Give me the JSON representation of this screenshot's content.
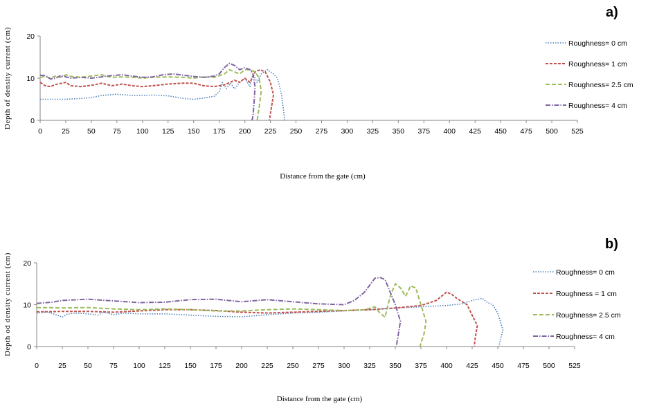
{
  "chart_data": [
    {
      "type": "line",
      "panel_label": "a)",
      "xlabel": "Distance from the gate (cm)",
      "ylabel": "Depth of density current (cm)",
      "xlim": [
        0,
        525
      ],
      "ylim": [
        0,
        20
      ],
      "xticks": [
        "0",
        "25",
        "50",
        "75",
        "100",
        "125",
        "150",
        "175",
        "200",
        "225",
        "250",
        "275",
        "300",
        "325",
        "350",
        "375",
        "400",
        "425",
        "450",
        "475",
        "500",
        "525"
      ],
      "yticks": [
        "0",
        "10",
        "20"
      ],
      "legend_position": "right",
      "series": [
        {
          "name": "Roughness= 0 cm",
          "color": "#4f81bd",
          "dash": "1.5,2",
          "width": 1.6,
          "points": [
            [
              0,
              5
            ],
            [
              10,
              5
            ],
            [
              25,
              5
            ],
            [
              40,
              5.2
            ],
            [
              50,
              5.4
            ],
            [
              60,
              5.9
            ],
            [
              75,
              6.2
            ],
            [
              90,
              5.9
            ],
            [
              100,
              5.9
            ],
            [
              110,
              6
            ],
            [
              125,
              5.8
            ],
            [
              140,
              5.2
            ],
            [
              150,
              5
            ],
            [
              160,
              5.3
            ],
            [
              170,
              5.7
            ],
            [
              175,
              6.8
            ],
            [
              178,
              9
            ],
            [
              182,
              7.5
            ],
            [
              186,
              8.8
            ],
            [
              190,
              7.5
            ],
            [
              195,
              9
            ],
            [
              200,
              10
            ],
            [
              205,
              8
            ],
            [
              208,
              11
            ],
            [
              212,
              9
            ],
            [
              216,
              11
            ],
            [
              222,
              12
            ],
            [
              228,
              11
            ],
            [
              232,
              10
            ],
            [
              236,
              6
            ],
            [
              238,
              2
            ],
            [
              239,
              0
            ]
          ]
        },
        {
          "name": "Roughness= 1 cm",
          "color": "#c0504d",
          "dash": "4,2",
          "width": 2,
          "points": [
            [
              0,
              9
            ],
            [
              5,
              8.2
            ],
            [
              10,
              8
            ],
            [
              15,
              8.5
            ],
            [
              25,
              9
            ],
            [
              30,
              8.2
            ],
            [
              40,
              8
            ],
            [
              50,
              8.3
            ],
            [
              60,
              8.8
            ],
            [
              70,
              8.2
            ],
            [
              80,
              8.6
            ],
            [
              90,
              8.2
            ],
            [
              100,
              8
            ],
            [
              110,
              8.2
            ],
            [
              125,
              8.6
            ],
            [
              140,
              8.8
            ],
            [
              150,
              8.8
            ],
            [
              160,
              8.2
            ],
            [
              170,
              8
            ],
            [
              180,
              8.4
            ],
            [
              190,
              9.5
            ],
            [
              195,
              9
            ],
            [
              200,
              10
            ],
            [
              205,
              9
            ],
            [
              210,
              11.5
            ],
            [
              215,
              12
            ],
            [
              220,
              11.5
            ],
            [
              225,
              9
            ],
            [
              228,
              6
            ],
            [
              226,
              3
            ],
            [
              224,
              0
            ]
          ]
        },
        {
          "name": "Roughness= 2.5 cm",
          "color": "#9bbb59",
          "dash": "6,3",
          "width": 2,
          "points": [
            [
              0,
              10.2
            ],
            [
              5,
              10.4
            ],
            [
              10,
              10
            ],
            [
              15,
              10.5
            ],
            [
              20,
              10.2
            ],
            [
              25,
              10.8
            ],
            [
              30,
              10.4
            ],
            [
              40,
              10.2
            ],
            [
              50,
              10.5
            ],
            [
              60,
              10.8
            ],
            [
              70,
              10.2
            ],
            [
              80,
              10.3
            ],
            [
              90,
              10.2
            ],
            [
              100,
              10
            ],
            [
              110,
              10.2
            ],
            [
              125,
              10.3
            ],
            [
              140,
              10.2
            ],
            [
              150,
              10
            ],
            [
              160,
              10.3
            ],
            [
              170,
              10.2
            ],
            [
              180,
              11
            ],
            [
              185,
              12
            ],
            [
              190,
              11.5
            ],
            [
              195,
              11
            ],
            [
              200,
              12
            ],
            [
              205,
              12
            ],
            [
              210,
              11.5
            ],
            [
              214,
              10
            ],
            [
              216,
              7
            ],
            [
              214,
              3
            ],
            [
              212,
              0
            ]
          ]
        },
        {
          "name": "Roughness= 4 cm",
          "color": "#8064a2",
          "dash": "7,2,1.5,2",
          "width": 2,
          "points": [
            [
              0,
              10.7
            ],
            [
              5,
              10.6
            ],
            [
              10,
              9.8
            ],
            [
              15,
              10
            ],
            [
              20,
              10.6
            ],
            [
              30,
              10
            ],
            [
              40,
              10.2
            ],
            [
              50,
              10
            ],
            [
              60,
              10.3
            ],
            [
              70,
              10.6
            ],
            [
              80,
              10.8
            ],
            [
              90,
              10.5
            ],
            [
              100,
              10.2
            ],
            [
              110,
              10.3
            ],
            [
              120,
              10.8
            ],
            [
              130,
              11
            ],
            [
              140,
              10.7
            ],
            [
              150,
              10.4
            ],
            [
              160,
              10.2
            ],
            [
              170,
              10.5
            ],
            [
              175,
              11
            ],
            [
              180,
              12.5
            ],
            [
              185,
              13.5
            ],
            [
              190,
              13
            ],
            [
              195,
              12
            ],
            [
              200,
              12.5
            ],
            [
              205,
              12
            ],
            [
              208,
              11
            ],
            [
              210,
              8
            ],
            [
              209,
              4
            ],
            [
              208,
              1
            ],
            [
              207,
              0
            ]
          ]
        }
      ]
    },
    {
      "type": "line",
      "panel_label": "b)",
      "xlabel": "Distance from the gate (cm)",
      "ylabel": "Depth od density current (cm)",
      "xlim": [
        0,
        525
      ],
      "ylim": [
        0,
        20
      ],
      "xticks": [
        "0",
        "25",
        "50",
        "75",
        "100",
        "125",
        "150",
        "175",
        "200",
        "225",
        "250",
        "275",
        "300",
        "325",
        "350",
        "375",
        "400",
        "425",
        "450",
        "475",
        "500",
        "525"
      ],
      "yticks": [
        "0",
        "10",
        "20"
      ],
      "legend_position": "right",
      "series": [
        {
          "name": "Roughness= 0 cm",
          "color": "#4f81bd",
          "dash": "1.5,2",
          "width": 1.6,
          "points": [
            [
              0,
              8
            ],
            [
              10,
              8.3
            ],
            [
              20,
              7.5
            ],
            [
              25,
              7
            ],
            [
              30,
              7.8
            ],
            [
              40,
              8
            ],
            [
              50,
              7.8
            ],
            [
              60,
              7.5
            ],
            [
              65,
              8.2
            ],
            [
              75,
              7.6
            ],
            [
              85,
              8
            ],
            [
              100,
              7.8
            ],
            [
              125,
              7.8
            ],
            [
              150,
              7.5
            ],
            [
              175,
              7.2
            ],
            [
              200,
              7.1
            ],
            [
              225,
              7.6
            ],
            [
              250,
              8
            ],
            [
              275,
              8.2
            ],
            [
              300,
              8.5
            ],
            [
              325,
              8.8
            ],
            [
              350,
              9.2
            ],
            [
              375,
              9.5
            ],
            [
              400,
              9.8
            ],
            [
              415,
              10.2
            ],
            [
              425,
              11
            ],
            [
              435,
              11.5
            ],
            [
              440,
              10.5
            ],
            [
              445,
              10
            ],
            [
              450,
              8
            ],
            [
              455,
              4
            ],
            [
              453,
              2
            ],
            [
              451,
              0
            ]
          ]
        },
        {
          "name": "Roughness = 1 cm",
          "color": "#c0504d",
          "dash": "4,2",
          "width": 2,
          "points": [
            [
              0,
              8.3
            ],
            [
              10,
              8.3
            ],
            [
              25,
              8.4
            ],
            [
              50,
              8.4
            ],
            [
              75,
              8.2
            ],
            [
              100,
              8.5
            ],
            [
              125,
              8.8
            ],
            [
              150,
              8.8
            ],
            [
              175,
              8.6
            ],
            [
              200,
              8.2
            ],
            [
              225,
              8
            ],
            [
              250,
              8.2
            ],
            [
              275,
              8.4
            ],
            [
              300,
              8.6
            ],
            [
              325,
              8.8
            ],
            [
              350,
              9.2
            ],
            [
              375,
              9.8
            ],
            [
              390,
              11
            ],
            [
              400,
              13
            ],
            [
              405,
              12.5
            ],
            [
              410,
              11.5
            ],
            [
              420,
              10
            ],
            [
              430,
              5
            ],
            [
              428,
              2
            ],
            [
              427,
              0
            ]
          ]
        },
        {
          "name": "Roughness= 2.5 cm",
          "color": "#9bbb59",
          "dash": "6,3",
          "width": 2,
          "points": [
            [
              0,
              9.3
            ],
            [
              10,
              9.3
            ],
            [
              25,
              9.2
            ],
            [
              50,
              9.3
            ],
            [
              75,
              9
            ],
            [
              100,
              8.8
            ],
            [
              125,
              9
            ],
            [
              150,
              8.8
            ],
            [
              175,
              8.5
            ],
            [
              200,
              8.5
            ],
            [
              225,
              8.8
            ],
            [
              250,
              9
            ],
            [
              275,
              8.8
            ],
            [
              300,
              8.6
            ],
            [
              320,
              8.8
            ],
            [
              330,
              9.5
            ],
            [
              335,
              8
            ],
            [
              340,
              7
            ],
            [
              345,
              12
            ],
            [
              350,
              15
            ],
            [
              355,
              14
            ],
            [
              360,
              12
            ],
            [
              365,
              14.5
            ],
            [
              370,
              14
            ],
            [
              375,
              10
            ],
            [
              380,
              6
            ],
            [
              378,
              3
            ],
            [
              374,
              0
            ]
          ]
        },
        {
          "name": "Roughness= 4 cm",
          "color": "#8064a2",
          "dash": "7,2,1.5,2",
          "width": 2,
          "points": [
            [
              0,
              10.3
            ],
            [
              15,
              10.6
            ],
            [
              25,
              11
            ],
            [
              50,
              11.3
            ],
            [
              75,
              10.9
            ],
            [
              100,
              10.5
            ],
            [
              125,
              10.6
            ],
            [
              150,
              11.2
            ],
            [
              175,
              11.3
            ],
            [
              200,
              10.7
            ],
            [
              225,
              11.2
            ],
            [
              250,
              10.7
            ],
            [
              275,
              10.2
            ],
            [
              300,
              10
            ],
            [
              310,
              11
            ],
            [
              320,
              13
            ],
            [
              330,
              16.3
            ],
            [
              335,
              16.5
            ],
            [
              340,
              16
            ],
            [
              345,
              13
            ],
            [
              350,
              10
            ],
            [
              355,
              6
            ],
            [
              353,
              3
            ],
            [
              351,
              0
            ]
          ]
        }
      ]
    }
  ]
}
